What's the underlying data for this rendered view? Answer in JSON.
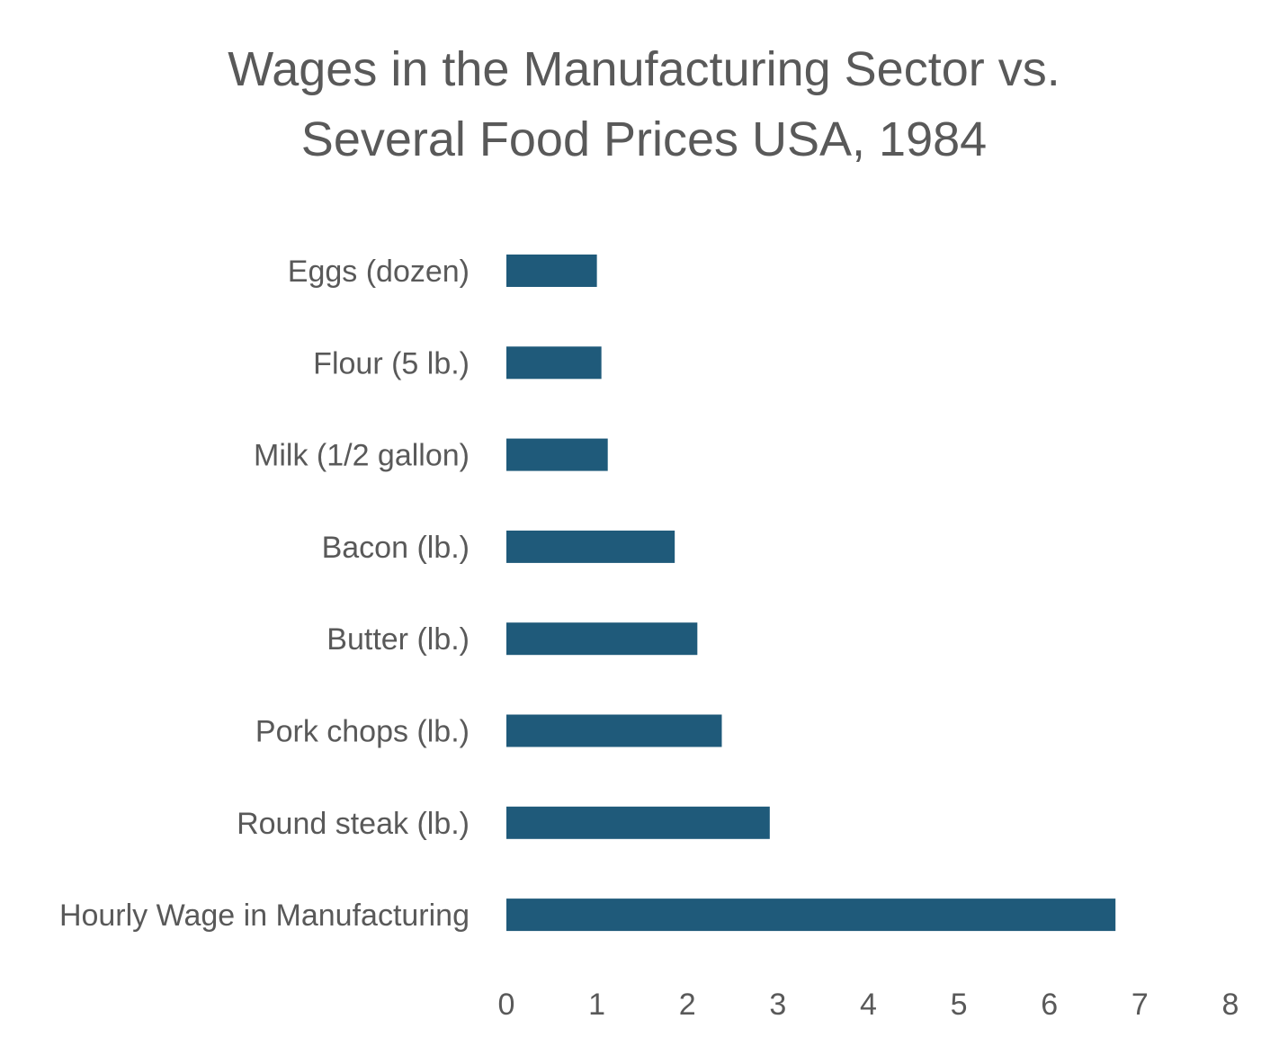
{
  "chart_data": {
    "type": "bar",
    "orientation": "horizontal",
    "title_lines": [
      "Wages in the Manufacturing Sector vs.",
      "Several Food Prices USA, 1984"
    ],
    "categories": [
      "Eggs (dozen)",
      "Flour (5 lb.)",
      "Milk (1/2 gallon)",
      "Bacon (lb.)",
      "Butter (lb.)",
      "Pork chops (lb.)",
      "Round steak (lb.)",
      "Hourly Wage in Manufacturing"
    ],
    "values": [
      1.0,
      1.05,
      1.12,
      1.86,
      2.11,
      2.38,
      2.91,
      6.73
    ],
    "xlim": [
      0,
      8
    ],
    "xticks": [
      "0",
      "1",
      "2",
      "3",
      "4",
      "5",
      "6",
      "7",
      "8"
    ],
    "bar_color": "#1f5a7a",
    "text_color": "#595959",
    "grid": false,
    "legend": "none"
  }
}
